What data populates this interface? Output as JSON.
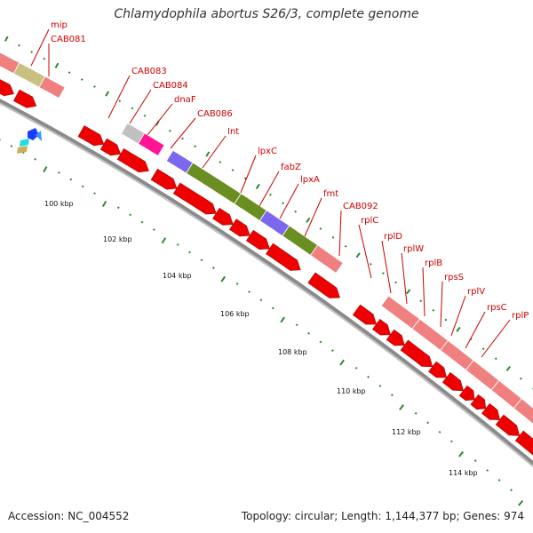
{
  "header": {
    "title": "Chlamydophila abortus S26/3, complete genome"
  },
  "footer": {
    "accession": "Accession: NC_004552",
    "summary": "Topology: circular; Length: 1,144,377 bp; Genes: 974"
  },
  "colors": {
    "background": "#ffffff",
    "label": "#cc0000",
    "tick": "#2a8a2a",
    "backbone": "#8a8a8a",
    "gene_arrow": "#ee0000",
    "gene_box_pink": "#f08080",
    "gene_box_olive": "#c8c080",
    "gene_box_green": "#6b8e23",
    "gene_box_purple": "#7b68ee",
    "gene_box_magenta": "#ff1493",
    "gene_box_gray": "#c0c0c0"
  },
  "scale_labels": [
    "100 kbp",
    "102 kbp",
    "104 kbp",
    "106 kbp",
    "108 kbp",
    "110 kbp",
    "112 kbp",
    "114 kbp"
  ],
  "gene_labels": [
    "mip",
    "CAB081",
    "CAB083",
    "CAB084",
    "dnaF",
    "CAB086",
    "Int",
    "lpxC",
    "fabZ",
    "lpxA",
    "fmt",
    "CAB092",
    "rplC",
    "rplD",
    "rplW",
    "rplB",
    "rpsS",
    "rplV",
    "rpsC",
    "rplP"
  ]
}
